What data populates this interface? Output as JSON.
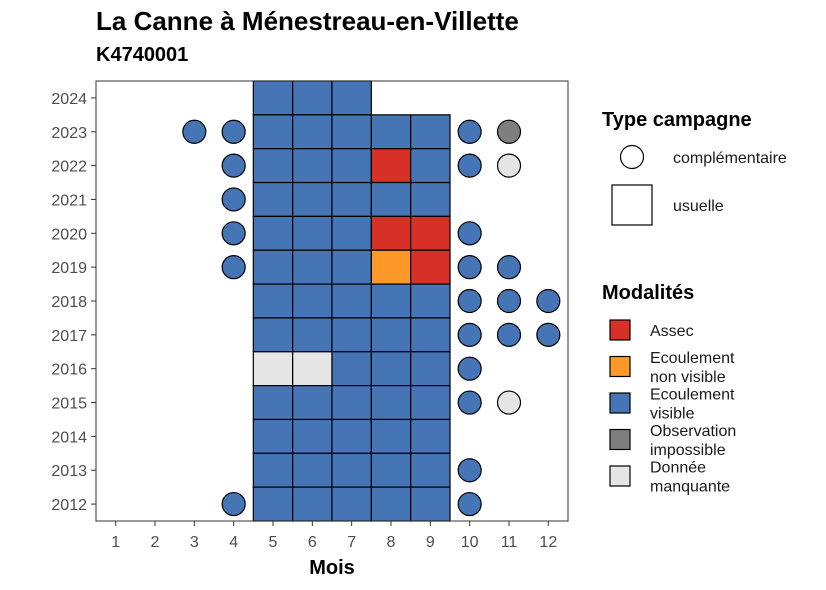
{
  "chart_data": {
    "type": "heatmap",
    "title": "La Canne à Ménestreau-en-Villette",
    "subtitle": "K4740001",
    "xlabel": "Mois",
    "ylabel": "",
    "x_ticks": [
      1,
      2,
      3,
      4,
      5,
      6,
      7,
      8,
      9,
      10,
      11,
      12
    ],
    "y_ticks": [
      2012,
      2013,
      2014,
      2015,
      2016,
      2017,
      2018,
      2019,
      2020,
      2021,
      2022,
      2023,
      2024
    ],
    "xlim": [
      0.5,
      12.5
    ],
    "ylim": [
      2011.5,
      2024.5
    ],
    "grid": false,
    "colors": {
      "Assec": "#d73027",
      "Ecoulement non visible": "#fe9929",
      "Ecoulement visible": "#4575b4",
      "Observation impossible": "#7f7f7f",
      "Donnée manquante": "#e5e5e5"
    },
    "legend_shape": {
      "title": "Type campagne",
      "items": [
        {
          "key": "complementaire",
          "label": "complémentaire",
          "shape": "circle"
        },
        {
          "key": "usuelle",
          "label": "usuelle",
          "shape": "square"
        }
      ]
    },
    "legend_fill": {
      "title": "Modalités",
      "items": [
        {
          "key": "Assec",
          "lines": [
            "Assec"
          ]
        },
        {
          "key": "Ecoulement non visible",
          "lines": [
            "Ecoulement",
            "non visible"
          ]
        },
        {
          "key": "Ecoulement visible",
          "lines": [
            "Ecoulement",
            "visible"
          ]
        },
        {
          "key": "Observation impossible",
          "lines": [
            "Observation",
            "impossible"
          ]
        },
        {
          "key": "Donnée manquante",
          "lines": [
            "Donnée",
            "manquante"
          ]
        }
      ]
    },
    "usuelle": [
      {
        "year": 2024,
        "month": 5,
        "value": "Ecoulement visible"
      },
      {
        "year": 2024,
        "month": 6,
        "value": "Ecoulement visible"
      },
      {
        "year": 2024,
        "month": 7,
        "value": "Ecoulement visible"
      },
      {
        "year": 2023,
        "month": 5,
        "value": "Ecoulement visible"
      },
      {
        "year": 2023,
        "month": 6,
        "value": "Ecoulement visible"
      },
      {
        "year": 2023,
        "month": 7,
        "value": "Ecoulement visible"
      },
      {
        "year": 2023,
        "month": 8,
        "value": "Ecoulement visible"
      },
      {
        "year": 2023,
        "month": 9,
        "value": "Ecoulement visible"
      },
      {
        "year": 2022,
        "month": 5,
        "value": "Ecoulement visible"
      },
      {
        "year": 2022,
        "month": 6,
        "value": "Ecoulement visible"
      },
      {
        "year": 2022,
        "month": 7,
        "value": "Ecoulement visible"
      },
      {
        "year": 2022,
        "month": 8,
        "value": "Assec"
      },
      {
        "year": 2022,
        "month": 9,
        "value": "Ecoulement visible"
      },
      {
        "year": 2021,
        "month": 5,
        "value": "Ecoulement visible"
      },
      {
        "year": 2021,
        "month": 6,
        "value": "Ecoulement visible"
      },
      {
        "year": 2021,
        "month": 7,
        "value": "Ecoulement visible"
      },
      {
        "year": 2021,
        "month": 8,
        "value": "Ecoulement visible"
      },
      {
        "year": 2021,
        "month": 9,
        "value": "Ecoulement visible"
      },
      {
        "year": 2020,
        "month": 5,
        "value": "Ecoulement visible"
      },
      {
        "year": 2020,
        "month": 6,
        "value": "Ecoulement visible"
      },
      {
        "year": 2020,
        "month": 7,
        "value": "Ecoulement visible"
      },
      {
        "year": 2020,
        "month": 8,
        "value": "Assec"
      },
      {
        "year": 2020,
        "month": 9,
        "value": "Assec"
      },
      {
        "year": 2019,
        "month": 5,
        "value": "Ecoulement visible"
      },
      {
        "year": 2019,
        "month": 6,
        "value": "Ecoulement visible"
      },
      {
        "year": 2019,
        "month": 7,
        "value": "Ecoulement visible"
      },
      {
        "year": 2019,
        "month": 8,
        "value": "Ecoulement non visible"
      },
      {
        "year": 2019,
        "month": 9,
        "value": "Assec"
      },
      {
        "year": 2018,
        "month": 5,
        "value": "Ecoulement visible"
      },
      {
        "year": 2018,
        "month": 6,
        "value": "Ecoulement visible"
      },
      {
        "year": 2018,
        "month": 7,
        "value": "Ecoulement visible"
      },
      {
        "year": 2018,
        "month": 8,
        "value": "Ecoulement visible"
      },
      {
        "year": 2018,
        "month": 9,
        "value": "Ecoulement visible"
      },
      {
        "year": 2017,
        "month": 5,
        "value": "Ecoulement visible"
      },
      {
        "year": 2017,
        "month": 6,
        "value": "Ecoulement visible"
      },
      {
        "year": 2017,
        "month": 7,
        "value": "Ecoulement visible"
      },
      {
        "year": 2017,
        "month": 8,
        "value": "Ecoulement visible"
      },
      {
        "year": 2017,
        "month": 9,
        "value": "Ecoulement visible"
      },
      {
        "year": 2016,
        "month": 5,
        "value": "Donnée manquante"
      },
      {
        "year": 2016,
        "month": 6,
        "value": "Donnée manquante"
      },
      {
        "year": 2016,
        "month": 7,
        "value": "Ecoulement visible"
      },
      {
        "year": 2016,
        "month": 8,
        "value": "Ecoulement visible"
      },
      {
        "year": 2016,
        "month": 9,
        "value": "Ecoulement visible"
      },
      {
        "year": 2015,
        "month": 5,
        "value": "Ecoulement visible"
      },
      {
        "year": 2015,
        "month": 6,
        "value": "Ecoulement visible"
      },
      {
        "year": 2015,
        "month": 7,
        "value": "Ecoulement visible"
      },
      {
        "year": 2015,
        "month": 8,
        "value": "Ecoulement visible"
      },
      {
        "year": 2015,
        "month": 9,
        "value": "Ecoulement visible"
      },
      {
        "year": 2014,
        "month": 5,
        "value": "Ecoulement visible"
      },
      {
        "year": 2014,
        "month": 6,
        "value": "Ecoulement visible"
      },
      {
        "year": 2014,
        "month": 7,
        "value": "Ecoulement visible"
      },
      {
        "year": 2014,
        "month": 8,
        "value": "Ecoulement visible"
      },
      {
        "year": 2014,
        "month": 9,
        "value": "Ecoulement visible"
      },
      {
        "year": 2013,
        "month": 5,
        "value": "Ecoulement visible"
      },
      {
        "year": 2013,
        "month": 6,
        "value": "Ecoulement visible"
      },
      {
        "year": 2013,
        "month": 7,
        "value": "Ecoulement visible"
      },
      {
        "year": 2013,
        "month": 8,
        "value": "Ecoulement visible"
      },
      {
        "year": 2013,
        "month": 9,
        "value": "Ecoulement visible"
      },
      {
        "year": 2012,
        "month": 5,
        "value": "Ecoulement visible"
      },
      {
        "year": 2012,
        "month": 6,
        "value": "Ecoulement visible"
      },
      {
        "year": 2012,
        "month": 7,
        "value": "Ecoulement visible"
      },
      {
        "year": 2012,
        "month": 8,
        "value": "Ecoulement visible"
      },
      {
        "year": 2012,
        "month": 9,
        "value": "Ecoulement visible"
      }
    ],
    "complementaire": [
      {
        "year": 2023,
        "month": 3,
        "value": "Ecoulement visible"
      },
      {
        "year": 2023,
        "month": 4,
        "value": "Ecoulement visible"
      },
      {
        "year": 2023,
        "month": 10,
        "value": "Ecoulement visible"
      },
      {
        "year": 2023,
        "month": 11,
        "value": "Observation impossible"
      },
      {
        "year": 2022,
        "month": 4,
        "value": "Ecoulement visible"
      },
      {
        "year": 2022,
        "month": 10,
        "value": "Ecoulement visible"
      },
      {
        "year": 2022,
        "month": 11,
        "value": "Donnée manquante"
      },
      {
        "year": 2021,
        "month": 4,
        "value": "Ecoulement visible"
      },
      {
        "year": 2020,
        "month": 4,
        "value": "Ecoulement visible"
      },
      {
        "year": 2020,
        "month": 10,
        "value": "Ecoulement visible"
      },
      {
        "year": 2019,
        "month": 4,
        "value": "Ecoulement visible"
      },
      {
        "year": 2019,
        "month": 10,
        "value": "Ecoulement visible"
      },
      {
        "year": 2019,
        "month": 11,
        "value": "Ecoulement visible"
      },
      {
        "year": 2018,
        "month": 10,
        "value": "Ecoulement visible"
      },
      {
        "year": 2018,
        "month": 11,
        "value": "Ecoulement visible"
      },
      {
        "year": 2018,
        "month": 12,
        "value": "Ecoulement visible"
      },
      {
        "year": 2017,
        "month": 10,
        "value": "Ecoulement visible"
      },
      {
        "year": 2017,
        "month": 11,
        "value": "Ecoulement visible"
      },
      {
        "year": 2017,
        "month": 12,
        "value": "Ecoulement visible"
      },
      {
        "year": 2016,
        "month": 10,
        "value": "Ecoulement visible"
      },
      {
        "year": 2015,
        "month": 10,
        "value": "Ecoulement visible"
      },
      {
        "year": 2015,
        "month": 11,
        "value": "Donnée manquante"
      },
      {
        "year": 2013,
        "month": 10,
        "value": "Ecoulement visible"
      },
      {
        "year": 2012,
        "month": 4,
        "value": "Ecoulement visible"
      },
      {
        "year": 2012,
        "month": 10,
        "value": "Ecoulement visible"
      }
    ]
  }
}
